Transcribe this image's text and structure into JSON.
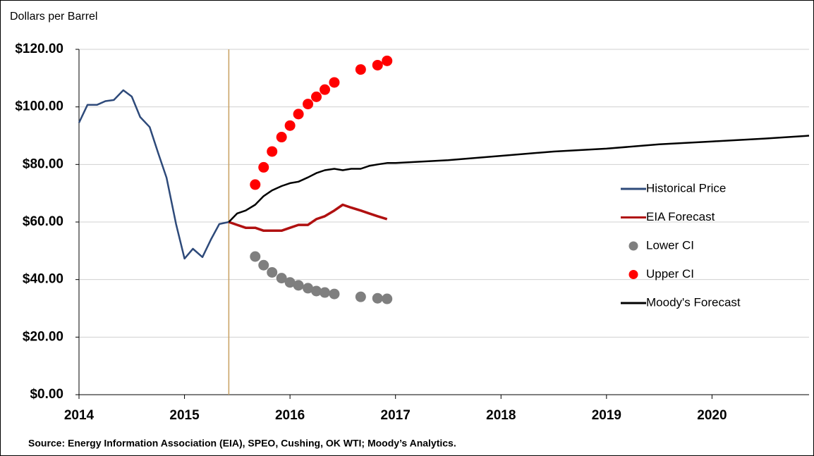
{
  "chart_data": {
    "type": "line",
    "y_label": "Dollars per Barrel",
    "source": "Source: Energy Information Association (EIA), SPEO, Cushing, OK WTI; Moody’s Analytics.",
    "xlim": [
      2014,
      2020.92
    ],
    "xticks": [
      2014,
      2015,
      2016,
      2017,
      2018,
      2019,
      2020
    ],
    "ylim": [
      0,
      120
    ],
    "yticks": [
      {
        "value": 0,
        "label": "$0.00"
      },
      {
        "value": 20,
        "label": "$20.00"
      },
      {
        "value": 40,
        "label": "$40.00"
      },
      {
        "value": 60,
        "label": "$60.00"
      },
      {
        "value": 80,
        "label": "$80.00"
      },
      {
        "value": 100,
        "label": "$100.00"
      },
      {
        "value": 120,
        "label": "$120.00"
      }
    ],
    "grid": true,
    "vline": 2015.42,
    "vline_color": "#c8a060",
    "legend": "right",
    "series": [
      {
        "name": "Historical Price",
        "color": "#2e4a7a",
        "mode": "line",
        "x": [
          2014,
          2014.08,
          2014.17,
          2014.25,
          2014.33,
          2014.42,
          2014.5,
          2014.58,
          2014.67,
          2014.75,
          2014.83,
          2014.92,
          2015,
          2015.08,
          2015.17,
          2015.25,
          2015.33,
          2015.42
        ],
        "values": [
          94.5,
          100.7,
          100.7,
          102,
          102.4,
          105.8,
          103.6,
          96.5,
          93,
          84,
          75.4,
          59.3,
          47.3,
          50.7,
          47.8,
          53.9,
          59.3,
          60
        ]
      },
      {
        "name": "EIA Forecast",
        "color": "#b01010",
        "mode": "line",
        "x": [
          2015.42,
          2015.5,
          2015.58,
          2015.67,
          2015.75,
          2015.83,
          2015.92,
          2016,
          2016.08,
          2016.17,
          2016.25,
          2016.33,
          2016.42,
          2016.5,
          2016.58,
          2016.67,
          2016.75,
          2016.83,
          2016.92
        ],
        "values": [
          60,
          59,
          58,
          58,
          57,
          57,
          57,
          58,
          59,
          59,
          61,
          62,
          64,
          66,
          65,
          64,
          63,
          62,
          61
        ]
      },
      {
        "name": "Lower CI",
        "color": "#7f7f7f",
        "mode": "markers",
        "x": [
          2015.67,
          2015.75,
          2015.83,
          2015.92,
          2016,
          2016.08,
          2016.17,
          2016.25,
          2016.33,
          2016.42,
          2016.67,
          2016.83,
          2016.92
        ],
        "values": [
          48,
          45,
          42.5,
          40.5,
          39,
          38,
          37,
          36,
          35.5,
          35,
          34,
          33.5,
          33.3
        ]
      },
      {
        "name": "Upper CI",
        "color": "#ff0000",
        "mode": "markers",
        "x": [
          2015.67,
          2015.75,
          2015.83,
          2015.92,
          2016,
          2016.08,
          2016.17,
          2016.25,
          2016.33,
          2016.42,
          2016.67,
          2016.83,
          2016.92
        ],
        "values": [
          73,
          79,
          84.5,
          89.5,
          93.5,
          97.5,
          101,
          103.5,
          106,
          108.5,
          113,
          114.5,
          116
        ]
      },
      {
        "name": "Moody's Forecast",
        "color": "#000000",
        "mode": "line",
        "x": [
          2015.42,
          2015.5,
          2015.58,
          2015.67,
          2015.75,
          2015.83,
          2015.92,
          2016,
          2016.08,
          2016.17,
          2016.25,
          2016.33,
          2016.42,
          2016.5,
          2016.58,
          2016.67,
          2016.75,
          2016.83,
          2016.92,
          2017,
          2017.5,
          2018,
          2018.5,
          2019,
          2019.5,
          2020,
          2020.5,
          2020.92
        ],
        "values": [
          60,
          63,
          64,
          66,
          69,
          71,
          72.5,
          73.5,
          74,
          75.5,
          77,
          78,
          78.5,
          78,
          78.5,
          78.5,
          79.5,
          80,
          80.5,
          80.5,
          81.5,
          83,
          84.5,
          85.5,
          87,
          88,
          89,
          90
        ]
      }
    ]
  }
}
